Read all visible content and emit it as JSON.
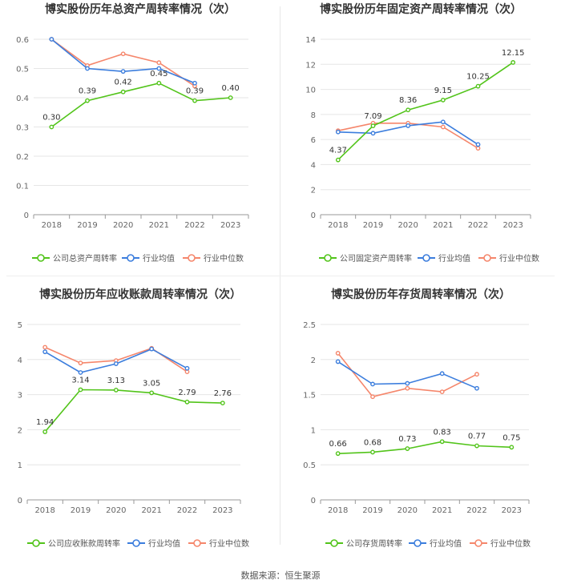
{
  "colors": {
    "company": "#52c41a",
    "industry_avg": "#3b7ddd",
    "industry_median": "#f5866b",
    "grid": "#e6e6e6",
    "axis": "#666666",
    "title": "#333333"
  },
  "source": "数据来源：恒生聚源",
  "chart_data": [
    {
      "type": "line",
      "title": "博实股份历年总资产周转率情况（次）",
      "categories": [
        "2018",
        "2019",
        "2020",
        "2021",
        "2022",
        "2023"
      ],
      "ylim": [
        0,
        0.6
      ],
      "yticks": [
        "0",
        "0.1",
        "0.2",
        "0.3",
        "0.4",
        "0.5",
        "0.6"
      ],
      "series": [
        {
          "name": "公司总资产周转率",
          "role": "company",
          "values": [
            0.3,
            0.39,
            0.42,
            0.45,
            0.39,
            0.4
          ],
          "labels": [
            "0.30",
            "0.39",
            "0.42",
            "0.45",
            "0.39",
            "0.40"
          ]
        },
        {
          "name": "行业均值",
          "role": "industry_avg",
          "values": [
            0.6,
            0.5,
            0.49,
            0.5,
            0.45,
            null
          ]
        },
        {
          "name": "行业中位数",
          "role": "industry_median",
          "values": [
            0.6,
            0.51,
            0.55,
            0.52,
            0.44,
            null
          ]
        }
      ]
    },
    {
      "type": "line",
      "title": "博实股份历年固定资产周转率情况（次）",
      "categories": [
        "2018",
        "2019",
        "2020",
        "2021",
        "2022",
        "2023"
      ],
      "ylim": [
        0,
        14
      ],
      "yticks": [
        "0",
        "2",
        "4",
        "6",
        "8",
        "10",
        "12",
        "14"
      ],
      "series": [
        {
          "name": "公司固定资产周转率",
          "role": "company",
          "values": [
            4.37,
            7.09,
            8.36,
            9.15,
            10.25,
            12.15
          ],
          "labels": [
            "4.37",
            "7.09",
            "8.36",
            "9.15",
            "10.25",
            "12.15"
          ]
        },
        {
          "name": "行业均值",
          "role": "industry_avg",
          "values": [
            6.6,
            6.5,
            7.1,
            7.4,
            5.6,
            null
          ]
        },
        {
          "name": "行业中位数",
          "role": "industry_median",
          "values": [
            6.7,
            7.3,
            7.3,
            7.0,
            5.3,
            null
          ]
        }
      ]
    },
    {
      "type": "line",
      "title": "博实股份历年应收账款周转率情况（次）",
      "categories": [
        "2018",
        "2019",
        "2020",
        "2021",
        "2022",
        "2023"
      ],
      "ylim": [
        0,
        5
      ],
      "yticks": [
        "0",
        "1",
        "2",
        "3",
        "4",
        "5"
      ],
      "series": [
        {
          "name": "公司应收账款周转率",
          "role": "company",
          "values": [
            1.94,
            3.14,
            3.13,
            3.05,
            2.79,
            2.76
          ],
          "labels": [
            "1.94",
            "3.14",
            "3.13",
            "3.05",
            "2.79",
            "2.76"
          ]
        },
        {
          "name": "行业均值",
          "role": "industry_avg",
          "values": [
            4.22,
            3.63,
            3.88,
            4.3,
            3.75,
            null
          ]
        },
        {
          "name": "行业中位数",
          "role": "industry_median",
          "values": [
            4.35,
            3.9,
            3.97,
            4.32,
            3.65,
            null
          ]
        }
      ]
    },
    {
      "type": "line",
      "title": "博实股份历年存货周转率情况（次）",
      "categories": [
        "2018",
        "2019",
        "2020",
        "2021",
        "2022",
        "2023"
      ],
      "ylim": [
        0,
        2.5
      ],
      "yticks": [
        "0",
        "0.5",
        "1",
        "1.5",
        "2",
        "2.5"
      ],
      "series": [
        {
          "name": "公司存货周转率",
          "role": "company",
          "values": [
            0.66,
            0.68,
            0.73,
            0.83,
            0.77,
            0.75
          ],
          "labels": [
            "0.66",
            "0.68",
            "0.73",
            "0.83",
            "0.77",
            "0.75"
          ]
        },
        {
          "name": "行业均值",
          "role": "industry_avg",
          "values": [
            1.97,
            1.65,
            1.66,
            1.8,
            1.59,
            null
          ]
        },
        {
          "name": "行业中位数",
          "role": "industry_median",
          "values": [
            2.09,
            1.47,
            1.59,
            1.54,
            1.79,
            null
          ]
        }
      ]
    }
  ]
}
